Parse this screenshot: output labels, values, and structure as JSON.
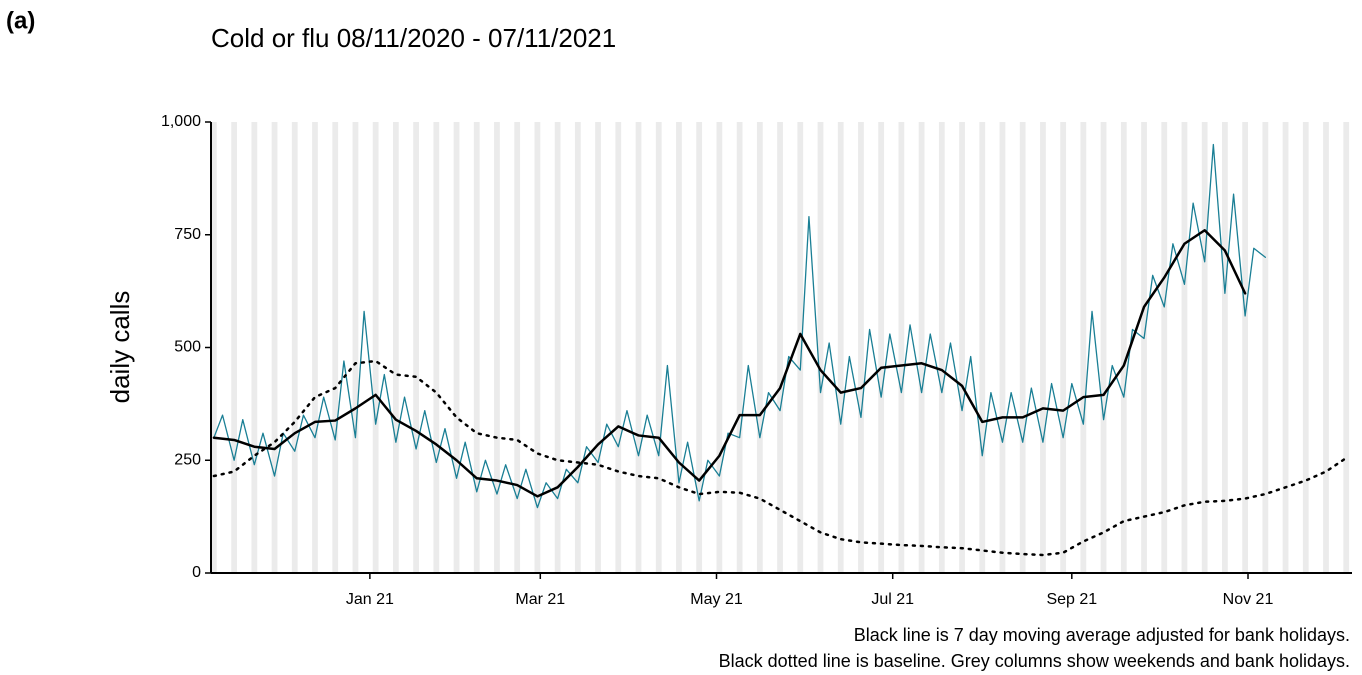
{
  "chart_data": {
    "type": "line",
    "panel_label": "(a)",
    "title": "Cold or flu 08/11/2020 - 07/11/2021",
    "y_label": "daily calls",
    "notes": [
      "Black line is 7 day moving average adjusted for bank holidays.",
      "Black dotted line is baseline. Grey columns show weekends and bank holidays."
    ],
    "weekend_color": "#ebebeb",
    "xlim": [
      "2020-11-07",
      "2021-12-07"
    ],
    "xticks": [
      {
        "value": "2021-01-01",
        "label": "Jan 21"
      },
      {
        "value": "2021-03-01",
        "label": "Mar 21"
      },
      {
        "value": "2021-05-01",
        "label": "May 21"
      },
      {
        "value": "2021-07-01",
        "label": "Jul 21"
      },
      {
        "value": "2021-09-01",
        "label": "Sep 21"
      },
      {
        "value": "2021-11-01",
        "label": "Nov 21"
      }
    ],
    "ylim": [
      0,
      1000
    ],
    "yticks": [
      0,
      250,
      500,
      750,
      {
        "value": 1000,
        "label": "1,000"
      }
    ],
    "x": [
      "2020-11-08",
      "2020-11-15",
      "2020-11-22",
      "2020-11-29",
      "2020-12-06",
      "2020-12-13",
      "2020-12-20",
      "2020-12-27",
      "2021-01-03",
      "2021-01-10",
      "2021-01-17",
      "2021-01-24",
      "2021-01-31",
      "2021-02-07",
      "2021-02-14",
      "2021-02-21",
      "2021-02-28",
      "2021-03-07",
      "2021-03-14",
      "2021-03-21",
      "2021-03-28",
      "2021-04-04",
      "2021-04-11",
      "2021-04-18",
      "2021-04-25",
      "2021-05-02",
      "2021-05-09",
      "2021-05-16",
      "2021-05-23",
      "2021-05-30",
      "2021-06-06",
      "2021-06-13",
      "2021-06-20",
      "2021-06-27",
      "2021-07-04",
      "2021-07-11",
      "2021-07-18",
      "2021-07-25",
      "2021-08-01",
      "2021-08-08",
      "2021-08-15",
      "2021-08-22",
      "2021-08-29",
      "2021-09-05",
      "2021-09-12",
      "2021-09-19",
      "2021-09-26",
      "2021-10-03",
      "2021-10-10",
      "2021-10-17",
      "2021-10-24",
      "2021-10-31",
      "2021-11-07",
      "2021-11-14",
      "2021-11-21",
      "2021-11-28",
      "2021-12-05"
    ],
    "series": [
      {
        "color": "#1a7f95",
        "style": "solid",
        "width": 1.3,
        "x": [
          "2020-11-08",
          "2020-11-11",
          "2020-11-15",
          "2020-11-18",
          "2020-11-22",
          "2020-11-25",
          "2020-11-29",
          "2020-12-02",
          "2020-12-06",
          "2020-12-09",
          "2020-12-13",
          "2020-12-16",
          "2020-12-20",
          "2020-12-23",
          "2020-12-27",
          "2020-12-30",
          "2021-01-03",
          "2021-01-06",
          "2021-01-10",
          "2021-01-13",
          "2021-01-17",
          "2021-01-20",
          "2021-01-24",
          "2021-01-27",
          "2021-01-31",
          "2021-02-03",
          "2021-02-07",
          "2021-02-10",
          "2021-02-14",
          "2021-02-17",
          "2021-02-21",
          "2021-02-24",
          "2021-02-28",
          "2021-03-03",
          "2021-03-07",
          "2021-03-10",
          "2021-03-14",
          "2021-03-17",
          "2021-03-21",
          "2021-03-24",
          "2021-03-28",
          "2021-03-31",
          "2021-04-04",
          "2021-04-07",
          "2021-04-11",
          "2021-04-14",
          "2021-04-18",
          "2021-04-21",
          "2021-04-25",
          "2021-04-28",
          "2021-05-02",
          "2021-05-05",
          "2021-05-09",
          "2021-05-12",
          "2021-05-16",
          "2021-05-19",
          "2021-05-23",
          "2021-05-26",
          "2021-05-30",
          "2021-06-02",
          "2021-06-06",
          "2021-06-09",
          "2021-06-13",
          "2021-06-16",
          "2021-06-20",
          "2021-06-23",
          "2021-06-27",
          "2021-06-30",
          "2021-07-04",
          "2021-07-07",
          "2021-07-11",
          "2021-07-14",
          "2021-07-18",
          "2021-07-21",
          "2021-07-25",
          "2021-07-28",
          "2021-08-01",
          "2021-08-04",
          "2021-08-08",
          "2021-08-11",
          "2021-08-15",
          "2021-08-18",
          "2021-08-22",
          "2021-08-25",
          "2021-08-29",
          "2021-09-01",
          "2021-09-05",
          "2021-09-08",
          "2021-09-12",
          "2021-09-15",
          "2021-09-19",
          "2021-09-22",
          "2021-09-26",
          "2021-09-29",
          "2021-10-03",
          "2021-10-06",
          "2021-10-10",
          "2021-10-13",
          "2021-10-17",
          "2021-10-20",
          "2021-10-24",
          "2021-10-27",
          "2021-10-31",
          "2021-11-03",
          "2021-11-07"
        ],
        "values": [
          300,
          350,
          250,
          340,
          240,
          310,
          215,
          310,
          270,
          350,
          300,
          390,
          295,
          470,
          300,
          580,
          330,
          440,
          290,
          390,
          275,
          360,
          245,
          320,
          210,
          290,
          180,
          250,
          175,
          240,
          165,
          230,
          145,
          200,
          165,
          230,
          200,
          280,
          245,
          330,
          280,
          360,
          260,
          350,
          260,
          460,
          200,
          290,
          160,
          250,
          215,
          310,
          300,
          460,
          300,
          400,
          360,
          480,
          450,
          790,
          400,
          510,
          330,
          480,
          345,
          540,
          390,
          530,
          400,
          550,
          400,
          530,
          400,
          510,
          360,
          480,
          260,
          400,
          290,
          400,
          290,
          410,
          290,
          420,
          300,
          420,
          330,
          580,
          340,
          460,
          390,
          540,
          520,
          660,
          590,
          730,
          640,
          820,
          690,
          950,
          620,
          840,
          570,
          720,
          700
        ]
      },
      {
        "color": "#000000",
        "style": "solid",
        "width": 2.5,
        "values": [
          300,
          295,
          280,
          275,
          310,
          335,
          338,
          365,
          395,
          340,
          315,
          285,
          250,
          210,
          205,
          195,
          170,
          190,
          235,
          285,
          325,
          305,
          300,
          245,
          205,
          260,
          350,
          350,
          410,
          530,
          450,
          400,
          410,
          455,
          460,
          465,
          450,
          415,
          335,
          345,
          345,
          365,
          360,
          390,
          395,
          460,
          590,
          655,
          730,
          760,
          715,
          620,
          null,
          null,
          null,
          null,
          null
        ]
      },
      {
        "color": "#000000",
        "style": "dotted",
        "width": 2.5,
        "values": [
          215,
          225,
          260,
          290,
          335,
          390,
          410,
          465,
          470,
          440,
          435,
          400,
          345,
          310,
          300,
          295,
          265,
          250,
          245,
          240,
          225,
          215,
          210,
          190,
          175,
          180,
          178,
          165,
          140,
          115,
          90,
          75,
          68,
          65,
          62,
          60,
          57,
          55,
          50,
          45,
          42,
          40,
          45,
          70,
          90,
          115,
          125,
          135,
          150,
          158,
          160,
          165,
          175,
          190,
          205,
          225,
          255
        ]
      }
    ]
  }
}
